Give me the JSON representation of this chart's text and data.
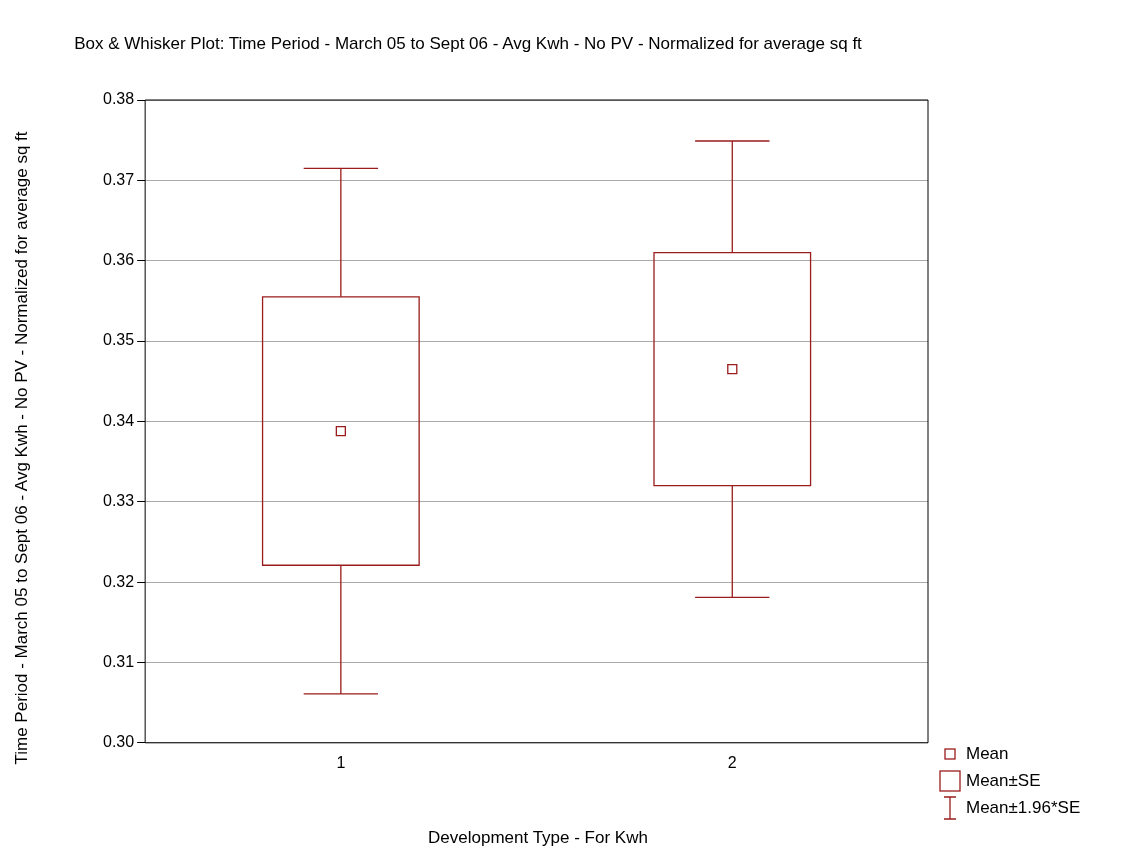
{
  "chart_data": {
    "type": "box",
    "title": "Box & Whisker Plot: Time Period - March 05 to Sept 06 - Avg Kwh - No PV - Normalized for average sq ft",
    "xlabel": "Development Type - For Kwh",
    "ylabel": "Time Period - March 05 to Sept 06 - Avg Kwh - No PV - Normalized for average sq ft",
    "categories": [
      "1",
      "2"
    ],
    "color": "#9b1c1c",
    "boxes": [
      {
        "low": 0.3061,
        "q1": 0.3221,
        "median": 0.3388,
        "q3": 0.3555,
        "high": 0.3715
      },
      {
        "low": 0.3181,
        "q1": 0.332,
        "median": 0.3465,
        "q3": 0.361,
        "high": 0.3749
      }
    ],
    "ylim": [
      0.3,
      0.38
    ],
    "yticks": [
      {
        "value": 0.3,
        "label": "0.30"
      },
      {
        "value": 0.31,
        "label": "0.31"
      },
      {
        "value": 0.32,
        "label": "0.32"
      },
      {
        "value": 0.33,
        "label": "0.33"
      },
      {
        "value": 0.34,
        "label": "0.34"
      },
      {
        "value": 0.35,
        "label": "0.35"
      },
      {
        "value": 0.36,
        "label": "0.36"
      },
      {
        "value": 0.37,
        "label": "0.37"
      },
      {
        "value": 0.38,
        "label": "0.38"
      }
    ],
    "grid": "y",
    "marker": "square",
    "annotations": [
      "Mean",
      "Mean±SE",
      "Mean±1.96*SE"
    ]
  }
}
